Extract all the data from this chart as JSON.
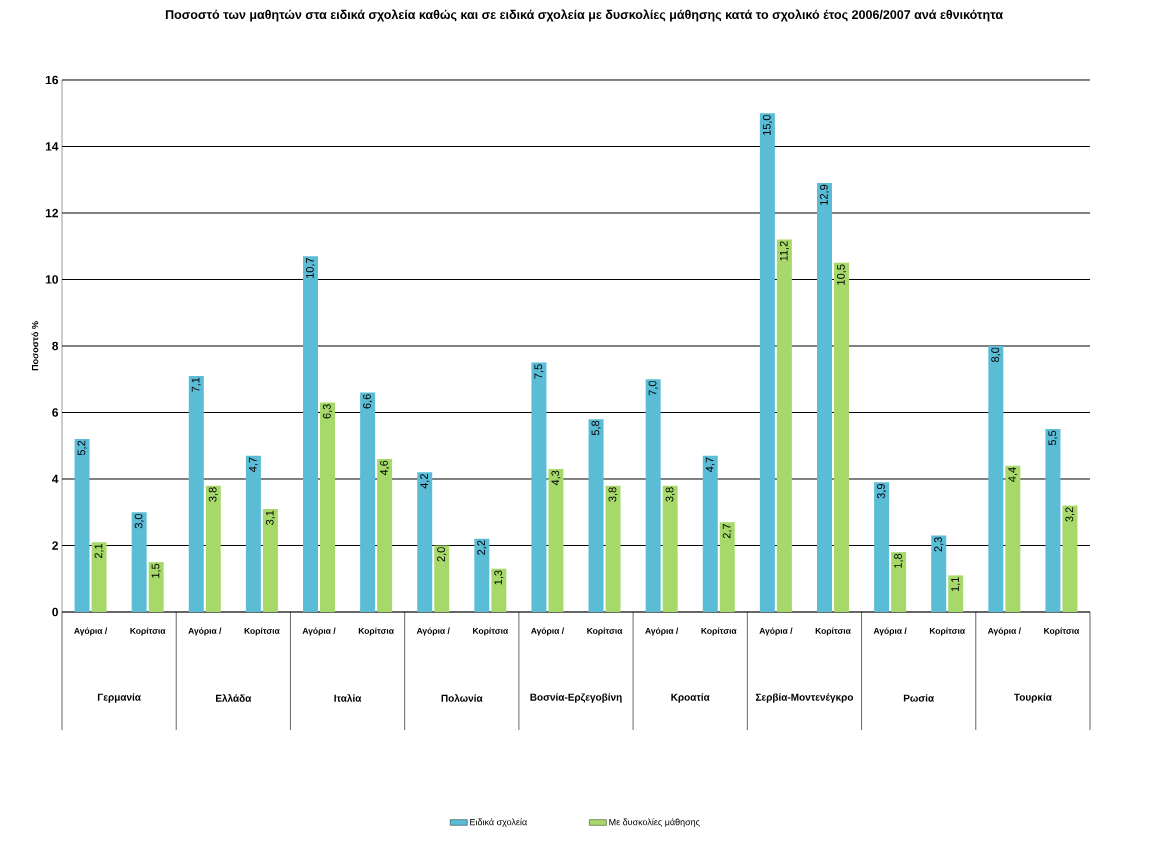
{
  "chart_data": {
    "type": "bar",
    "title": "Ποσοστό των μαθητών στα ειδικά σχολεία καθώς και σε ειδικά σχολεία με δυσκολίες μάθησης κατά το σχολικό έτος 2006/2007 ανά εθνικότητα",
    "ylabel": "Ποσοστό %",
    "categories": [
      "Αγόρια /",
      "Κορίτσια",
      "Αγόρια /",
      "Κορίτσια",
      "Αγόρια /",
      "Κορίτσια",
      "Αγόρια /",
      "Κορίτσια",
      "Αγόρια /",
      "Κορίτσια",
      "Αγόρια /",
      "Κορίτσια",
      "Αγόρια /",
      "Κορίτσια",
      "Αγόρια /",
      "Κορίτσια",
      "Αγόρια /",
      "Κορίτσια"
    ],
    "annotations": [
      "Γερμανία",
      "Ελλάδα",
      "Ιταλία",
      "Πολωνία",
      "Βοσνία-Ερζεγοβίνη",
      "Κροατία",
      "Σερβία-Μοντενέγκρο",
      "Ρωσία",
      "Τουρκία"
    ],
    "series": [
      {
        "name": "Ειδικά σχολεία",
        "color": "#5bbcd6",
        "values": [
          5.2,
          3.0,
          7.1,
          4.7,
          10.7,
          6.6,
          4.2,
          2.2,
          7.5,
          5.8,
          7.0,
          4.7,
          15.0,
          12.9,
          3.9,
          2.3,
          8.0,
          5.5
        ],
        "value_labels": [
          "5,2",
          "3,0",
          "7,1",
          "4,7",
          "10,7",
          "6,6",
          "4,2",
          "2,2",
          "7,5",
          "5,8",
          "7,0",
          "4,7",
          "15,0",
          "12,9",
          "3,9",
          "2,3",
          "8,0",
          "5,5"
        ]
      },
      {
        "name": "Με δυσκολίες μάθησης",
        "color": "#a6d96a",
        "values": [
          2.1,
          1.5,
          3.8,
          3.1,
          6.3,
          4.6,
          2.0,
          1.3,
          4.3,
          3.8,
          3.8,
          2.7,
          11.2,
          10.5,
          1.8,
          1.1,
          4.4,
          3.2
        ],
        "value_labels": [
          "2,1",
          "1,5",
          "3,8",
          "3,1",
          "6,3",
          "4,6",
          "2,0",
          "1,3",
          "4,3",
          "3,8",
          "3,8",
          "2,7",
          "11,2",
          "10,5",
          "1,8",
          "1,1",
          "4,4",
          "3,2"
        ]
      }
    ],
    "ylim": [
      0,
      16
    ],
    "yticks": [
      0,
      2,
      4,
      6,
      8,
      10,
      12,
      14,
      16
    ],
    "grid": "y",
    "legend": "bottom"
  }
}
